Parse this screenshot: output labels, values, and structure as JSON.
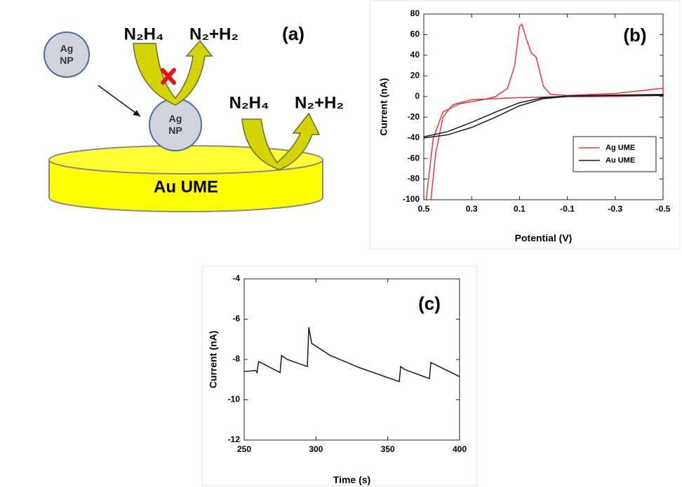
{
  "diagram": {
    "label": "(a)",
    "np_top": "Ag NP",
    "np_bottom": "Ag NP",
    "electrode": "Au UME",
    "reactant_1": "N₂H₄",
    "product_1": "N₂+H₂",
    "reactant_2": "N₂H₄",
    "product_2": "N₂+H₂"
  },
  "chart_data": [
    {
      "type": "line",
      "annotation": "(b)",
      "x_label": "Potential (V)",
      "y_label": "Current (nA)",
      "xlim": [
        0.5,
        -0.5
      ],
      "ylim": [
        -100,
        80
      ],
      "xticks": [
        0.5,
        0.3,
        0.1,
        -0.1,
        -0.3,
        -0.5
      ],
      "yticks": [
        -100,
        -80,
        -60,
        -40,
        -20,
        0,
        20,
        40,
        60,
        80
      ],
      "legend": "lower right",
      "series": [
        {
          "name": "Ag UME",
          "color": "#e8383d",
          "x": [
            0.49,
            0.46,
            0.42,
            0.35,
            0.25,
            0.2,
            0.15,
            0.12,
            0.1,
            0.09,
            0.07,
            0.05,
            0.03,
            0.0,
            -0.03,
            -0.1,
            -0.3,
            -0.5,
            -0.5,
            -0.3,
            -0.1,
            0.1,
            0.3,
            0.38,
            0.42,
            0.45,
            0.47
          ],
          "values": [
            -100,
            -40,
            -15,
            -7,
            -3,
            0,
            8,
            30,
            68,
            70,
            55,
            42,
            38,
            10,
            2,
            1,
            3,
            8,
            1,
            0,
            0,
            -1,
            -3,
            -8,
            -20,
            -55,
            -100
          ]
        },
        {
          "name": "Au UME",
          "color": "#1a1a1a",
          "x": [
            0.5,
            0.4,
            0.3,
            0.2,
            0.1,
            0.0,
            -0.1,
            -0.3,
            -0.5,
            -0.5,
            -0.3,
            -0.1,
            0.0,
            0.1,
            0.2,
            0.3,
            0.4,
            0.5
          ],
          "values": [
            -40,
            -37,
            -30,
            -20,
            -9,
            -2,
            0,
            1,
            1,
            2,
            1.5,
            0.5,
            -1,
            -6,
            -15,
            -25,
            -34,
            -39
          ]
        }
      ]
    },
    {
      "type": "line",
      "annotation": "(c)",
      "x_label": "Time (s)",
      "y_label": "Current (nA)",
      "xlim": [
        250,
        400
      ],
      "ylim": [
        -12,
        -4
      ],
      "xticks": [
        250,
        300,
        350,
        400
      ],
      "yticks": [
        -12,
        -10,
        -8,
        -6,
        -4
      ],
      "series": [
        {
          "name": null,
          "color": "#1a1a1a",
          "x": [
            250,
            258,
            259,
            260,
            275,
            276,
            280,
            288,
            290,
            294,
            295,
            297,
            310,
            330,
            358,
            359,
            362,
            379,
            380,
            390,
            400
          ],
          "values": [
            -8.6,
            -8.55,
            -8.65,
            -8.1,
            -8.65,
            -7.8,
            -8.0,
            -8.2,
            -8.25,
            -8.35,
            -6.4,
            -7.2,
            -7.8,
            -8.4,
            -9.1,
            -8.35,
            -8.5,
            -8.95,
            -8.15,
            -8.5,
            -8.85
          ]
        }
      ]
    }
  ]
}
